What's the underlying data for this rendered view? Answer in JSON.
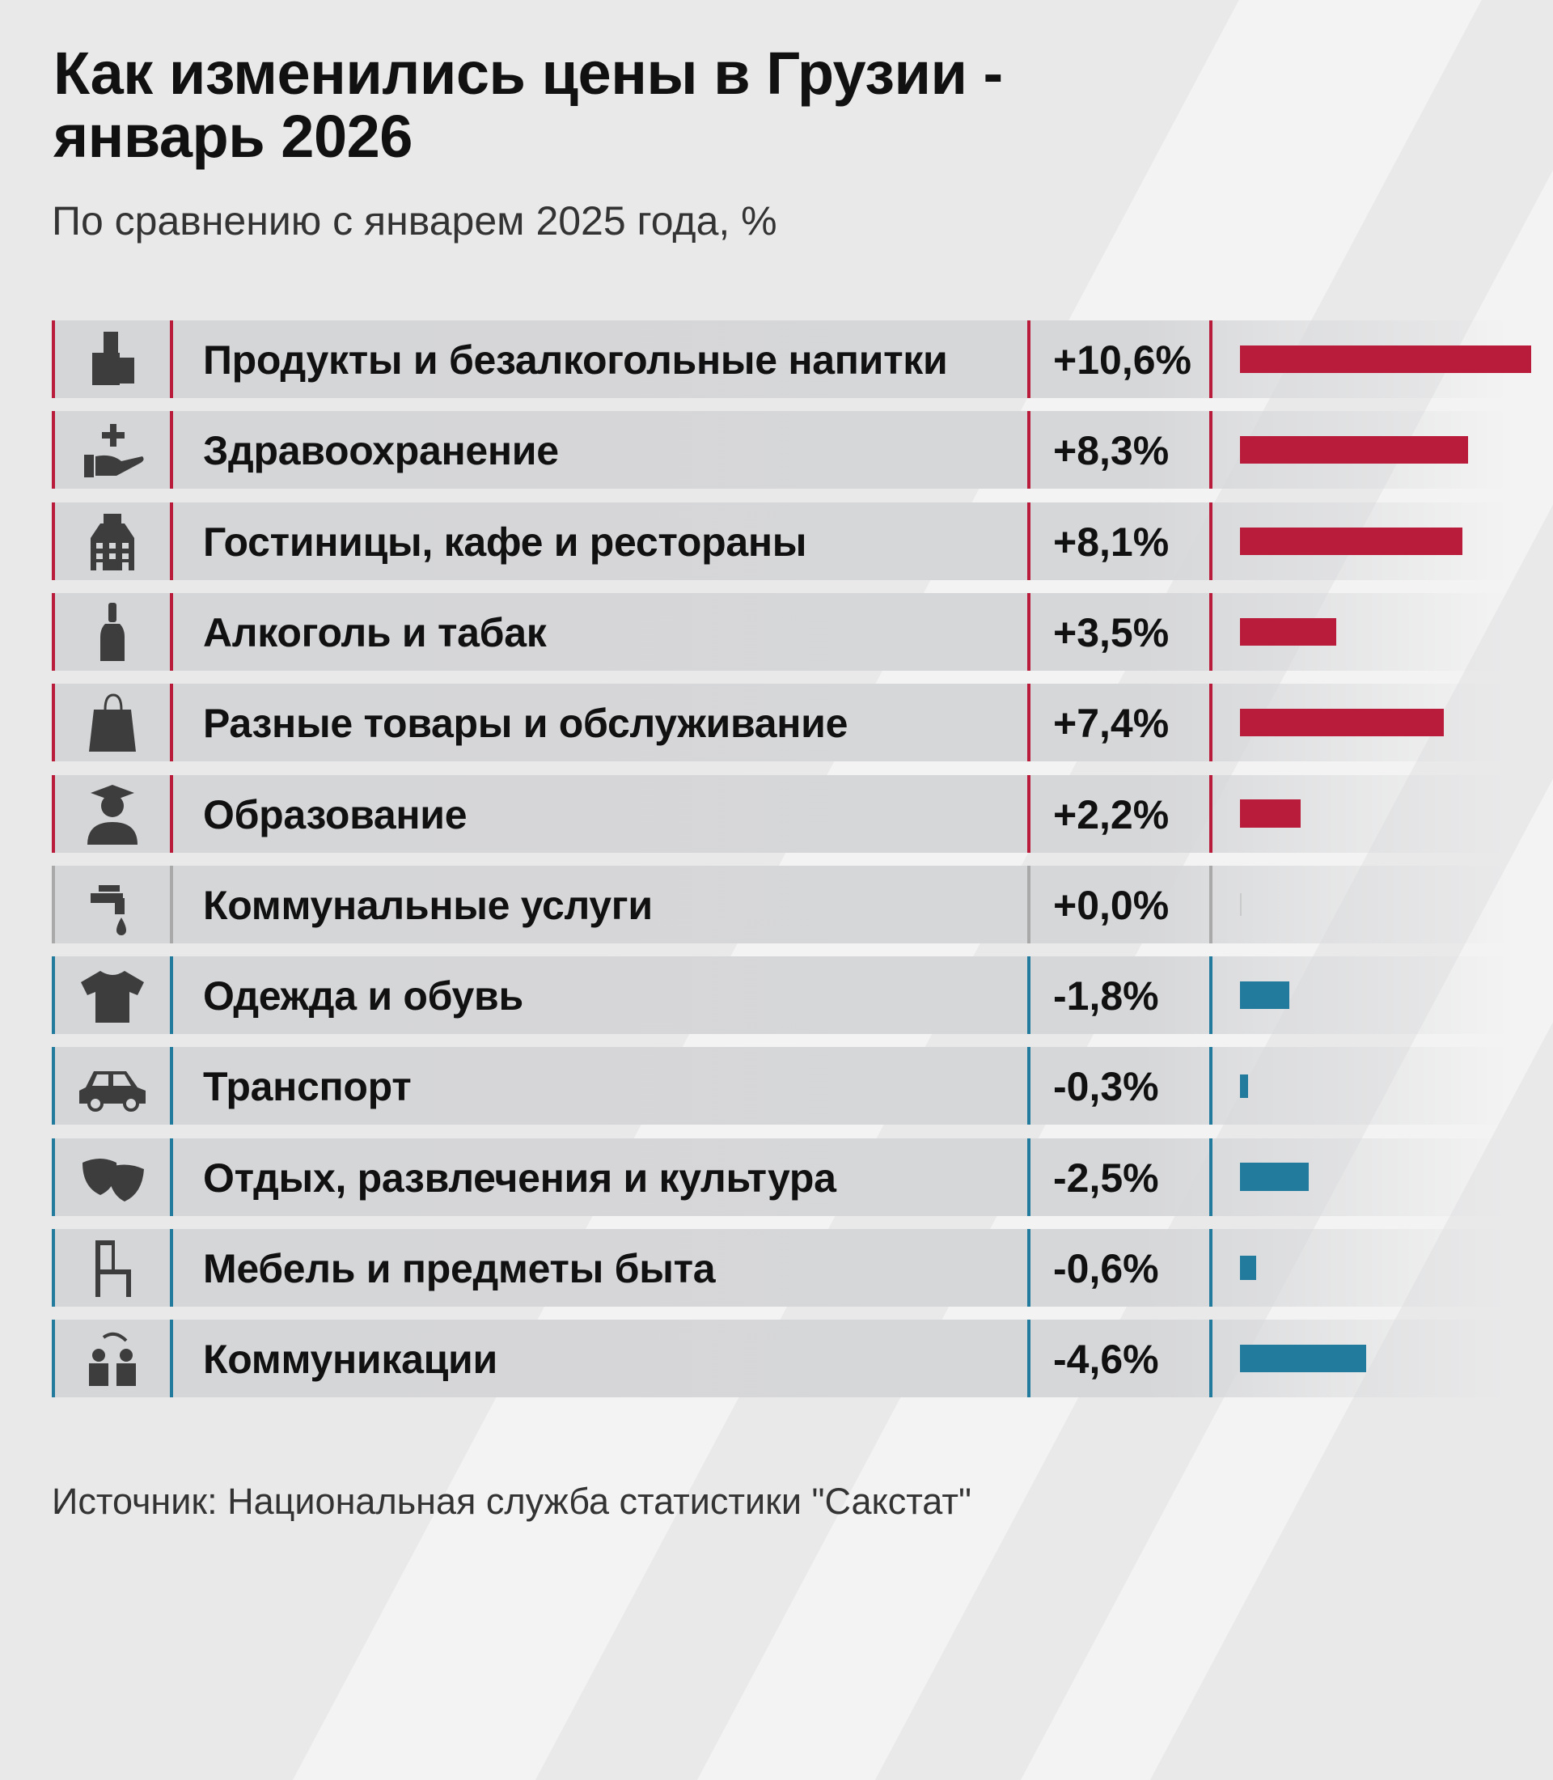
{
  "title_line1": "Как изменились цены в Грузии -",
  "title_line2": "январь 2026",
  "subtitle": "По сравнению с январем 2025 года, %",
  "source": "Источник: Национальная служба статистики \"Сакстат\"",
  "colors": {
    "positive": "#b81c3a",
    "negative": "#227a9c",
    "zero": "#a9a9a9"
  },
  "chart_data": {
    "type": "bar",
    "orientation": "horizontal",
    "title": "Как изменились цены в Грузии - январь 2026",
    "subtitle": "По сравнению с январем 2025 года, %",
    "categories": [
      "Продукты и безалкогольные напитки",
      "Здравоохранение",
      "Гостиницы, кафе и рестораны",
      "Алкоголь и табак",
      "Разные товары и обслуживание",
      "Образование",
      "Коммунальные услуги",
      "Одежда и обувь",
      "Транспорт",
      "Отдых, развлечения и культура",
      "Мебель и предметы быта",
      "Коммуникации"
    ],
    "values": [
      10.6,
      8.3,
      8.1,
      3.5,
      7.4,
      2.2,
      0.0,
      -1.8,
      -0.3,
      -2.5,
      -0.6,
      -4.6
    ],
    "labels": [
      "+10,6%",
      "+8,3%",
      "+8,1%",
      "+3,5%",
      "+7,4%",
      "+2,2%",
      "+0,0%",
      "-1,8%",
      "-0,3%",
      "-2,5%",
      "-0,6%",
      "-4,6%"
    ],
    "icons": [
      "groceries-icon",
      "healthcare-hand-icon",
      "hotel-building-icon",
      "bottle-icon",
      "shopping-bag-icon",
      "graduate-icon",
      "water-tap-icon",
      "tshirt-icon",
      "car-icon",
      "theater-masks-icon",
      "chair-icon",
      "people-exchange-icon"
    ],
    "bar_magnitude": "absolute value"
  }
}
